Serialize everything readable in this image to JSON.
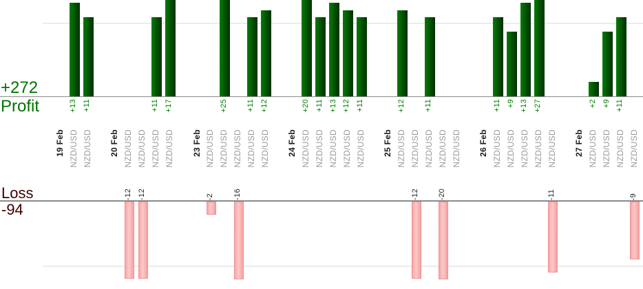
{
  "profit_panel": {
    "total": "+272",
    "axis_title": "Profit"
  },
  "loss_panel": {
    "axis_title": "Loss",
    "total": "-94"
  },
  "chart_data": {
    "type": "bar",
    "title": "",
    "xlabel": "",
    "ylabel_top": "Profit",
    "ylabel_bottom": "Loss",
    "profit_total": 272,
    "loss_total": -94,
    "gridlines": true,
    "legend": null,
    "symbol": "NZD/USD",
    "groups": [
      {
        "date": "19 Feb",
        "trades": [
          {
            "symbol": "NZD/USD",
            "value": 13
          },
          {
            "symbol": "NZD/USD",
            "value": 11
          }
        ]
      },
      {
        "date": "20 Feb",
        "trades": [
          {
            "symbol": "NZD/USD",
            "value": -12
          },
          {
            "symbol": "NZD/USD",
            "value": -12
          },
          {
            "symbol": "NZD/USD",
            "value": 11
          },
          {
            "symbol": "NZD/USD",
            "value": 17
          }
        ]
      },
      {
        "date": "23 Feb",
        "trades": [
          {
            "symbol": "NZD/USD",
            "value": -2
          },
          {
            "symbol": "NZD/USD",
            "value": 25
          },
          {
            "symbol": "NZD/USD",
            "value": -16
          },
          {
            "symbol": "NZD/USD",
            "value": 11
          },
          {
            "symbol": "NZD/USD",
            "value": 12
          }
        ]
      },
      {
        "date": "24 Feb",
        "trades": [
          {
            "symbol": "NZD/USD",
            "value": 20
          },
          {
            "symbol": "NZD/USD",
            "value": 11
          },
          {
            "symbol": "NZD/USD",
            "value": 13
          },
          {
            "symbol": "NZD/USD",
            "value": 12
          },
          {
            "symbol": "NZD/USD",
            "value": 11
          }
        ]
      },
      {
        "date": "25 Feb",
        "trades": [
          {
            "symbol": "NZD/USD",
            "value": 12
          },
          {
            "symbol": "NZD/USD",
            "value": -12
          },
          {
            "symbol": "NZD/USD",
            "value": 11
          },
          {
            "symbol": "NZD/USD",
            "value": -20
          },
          {
            "symbol": "NZD/USD",
            "value": 0
          }
        ]
      },
      {
        "date": "26 Feb",
        "trades": [
          {
            "symbol": "NZD/USD",
            "value": 11
          },
          {
            "symbol": "NZD/USD",
            "value": 9
          },
          {
            "symbol": "NZD/USD",
            "value": 13
          },
          {
            "symbol": "NZD/USD",
            "value": 27
          },
          {
            "symbol": "NZD/USD",
            "value": -11
          }
        ]
      },
      {
        "date": "27 Feb",
        "trades": [
          {
            "symbol": "NZD/USD",
            "value": 2
          },
          {
            "symbol": "NZD/USD",
            "value": 9
          },
          {
            "symbol": "NZD/USD",
            "value": 11
          },
          {
            "symbol": "NZD/USD",
            "value": -9
          }
        ]
      }
    ],
    "colors": {
      "profit_bar_gradient": [
        "#097a09",
        "#025502",
        "#003000"
      ],
      "profit_value_text": "#008000",
      "profit_title_text": "#007200",
      "loss_bar_gradient": [
        "#f7a6a6",
        "#ffc9c9",
        "#f5a0a0"
      ],
      "loss_bar_border": "#ec9494",
      "loss_title_text": "#400000",
      "loss_value_text": "#262626",
      "date_text": "#1a1a1a",
      "symbol_text": "#9a9a9a",
      "axis_line": "#8a8a8a",
      "gridline": "#ececec"
    }
  }
}
